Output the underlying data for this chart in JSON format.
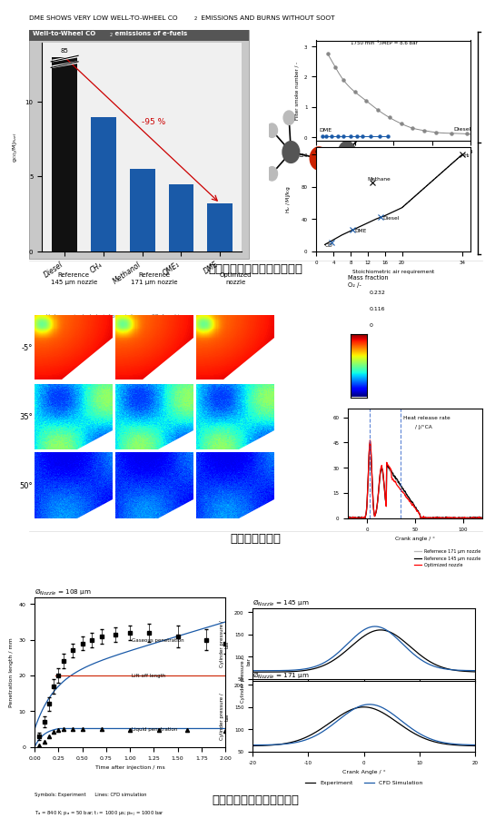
{
  "title_top": "DME SHOWS VERY LOW WELL-TO-WHEEL CO₂ EMISSIONS AND BURNS WITHOUT SOOT",
  "caption1": "ジメチルエーテル燃料の効果",
  "caption2": "噴霧諸元の影響",
  "caption3": "噴霧・燃焼の精度検証結果",
  "bg_color": "#ffffff",
  "col_labels": [
    "Reference\n145 µm nozzle",
    "Reference\n171 µm nozzle",
    "Optimized\nnozzle"
  ],
  "row_labels": [
    "-5°",
    "35°",
    "50°"
  ],
  "bar_categories": [
    "Diesel",
    "CH₄",
    "Methanol",
    "OME₁",
    "DME"
  ],
  "bar_values": [
    85,
    9,
    5.5,
    4.5,
    3.2
  ],
  "bar_colors": [
    "#111111",
    "#1a5aa8",
    "#1a5aa8",
    "#1a5aa8",
    "#1a5aa8"
  ]
}
